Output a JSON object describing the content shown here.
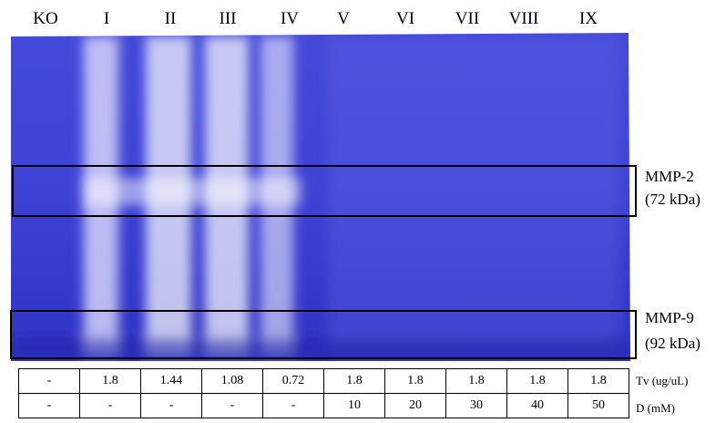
{
  "lanes": [
    "KO",
    "I",
    "II",
    "III",
    "IV",
    "V",
    "VI",
    "VII",
    "VIII",
    "IX"
  ],
  "bands": [
    {
      "name": "MMP-2",
      "size": "(72 kDa)"
    },
    {
      "name": "MMP-9",
      "size": "(92 kDa)"
    }
  ],
  "table": {
    "rows": [
      [
        "-",
        1.8,
        1.44,
        1.08,
        0.72,
        1.8,
        1.8,
        1.8,
        1.8,
        1.8
      ],
      [
        "-",
        "-",
        "-",
        "-",
        "-",
        10,
        20,
        30,
        40,
        50
      ]
    ],
    "row_labels": [
      "Tv (ug/uL)",
      "D (mM)"
    ]
  }
}
